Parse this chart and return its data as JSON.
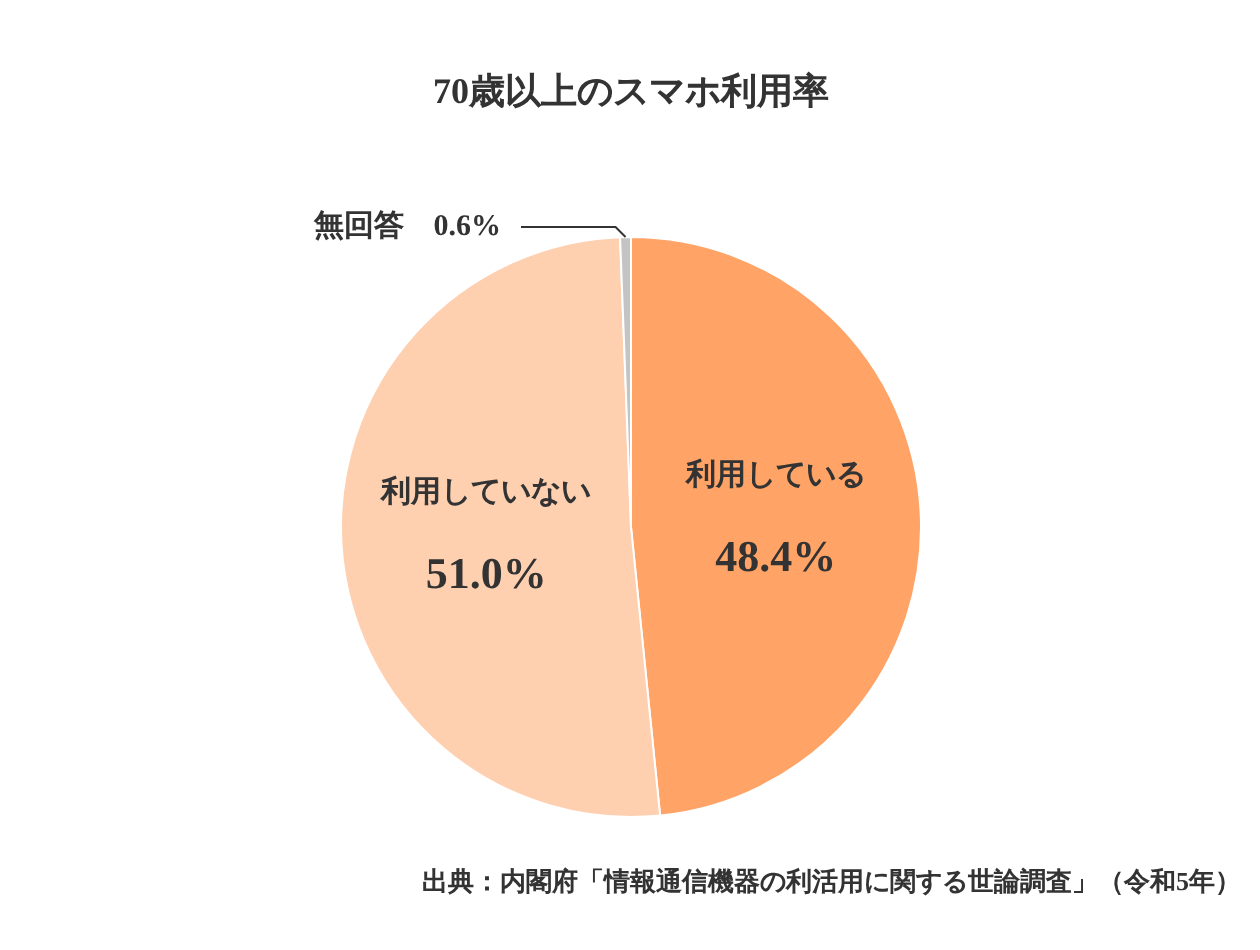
{
  "chart_data": {
    "type": "pie",
    "title": "70歳以上のスマホ利用率",
    "categories": [
      "利用している",
      "利用していない",
      "無回答"
    ],
    "values": [
      48.4,
      51.0,
      0.6
    ],
    "value_labels": [
      "48.4%",
      "51.0%",
      "0.6%"
    ],
    "colors": [
      "#ffa366",
      "#fed0b0",
      "#c4c4c4"
    ],
    "annotations": [
      "出典：内閣府「情報通信機器の利活用に関する世論調査」（令和5年）"
    ]
  }
}
